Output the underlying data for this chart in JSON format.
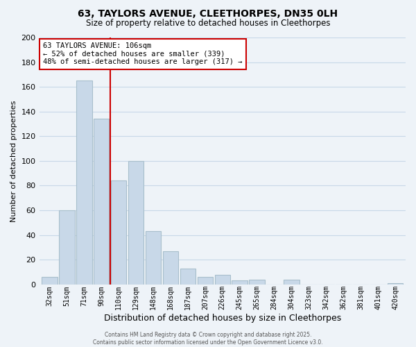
{
  "title": "63, TAYLORS AVENUE, CLEETHORPES, DN35 0LH",
  "subtitle": "Size of property relative to detached houses in Cleethorpes",
  "xlabel": "Distribution of detached houses by size in Cleethorpes",
  "ylabel": "Number of detached properties",
  "bar_labels": [
    "32sqm",
    "51sqm",
    "71sqm",
    "90sqm",
    "110sqm",
    "129sqm",
    "148sqm",
    "168sqm",
    "187sqm",
    "207sqm",
    "226sqm",
    "245sqm",
    "265sqm",
    "284sqm",
    "304sqm",
    "323sqm",
    "342sqm",
    "362sqm",
    "381sqm",
    "401sqm",
    "420sqm"
  ],
  "bar_values": [
    6,
    60,
    165,
    134,
    84,
    100,
    43,
    27,
    13,
    6,
    8,
    3,
    4,
    0,
    4,
    0,
    0,
    0,
    0,
    0,
    1
  ],
  "bar_color": "#c8d8e8",
  "bar_edge_color": "#a8bfcc",
  "vline_x": 3.5,
  "vline_color": "#cc0000",
  "annotation_text": "63 TAYLORS AVENUE: 106sqm\n← 52% of detached houses are smaller (339)\n48% of semi-detached houses are larger (317) →",
  "annotation_box_color": "#ffffff",
  "annotation_box_edge_color": "#cc0000",
  "ylim": [
    0,
    200
  ],
  "yticks": [
    0,
    20,
    40,
    60,
    80,
    100,
    120,
    140,
    160,
    180,
    200
  ],
  "grid_color": "#c8d8e8",
  "background_color": "#eef3f8",
  "footer_line1": "Contains HM Land Registry data © Crown copyright and database right 2025.",
  "footer_line2": "Contains public sector information licensed under the Open Government Licence v3.0."
}
